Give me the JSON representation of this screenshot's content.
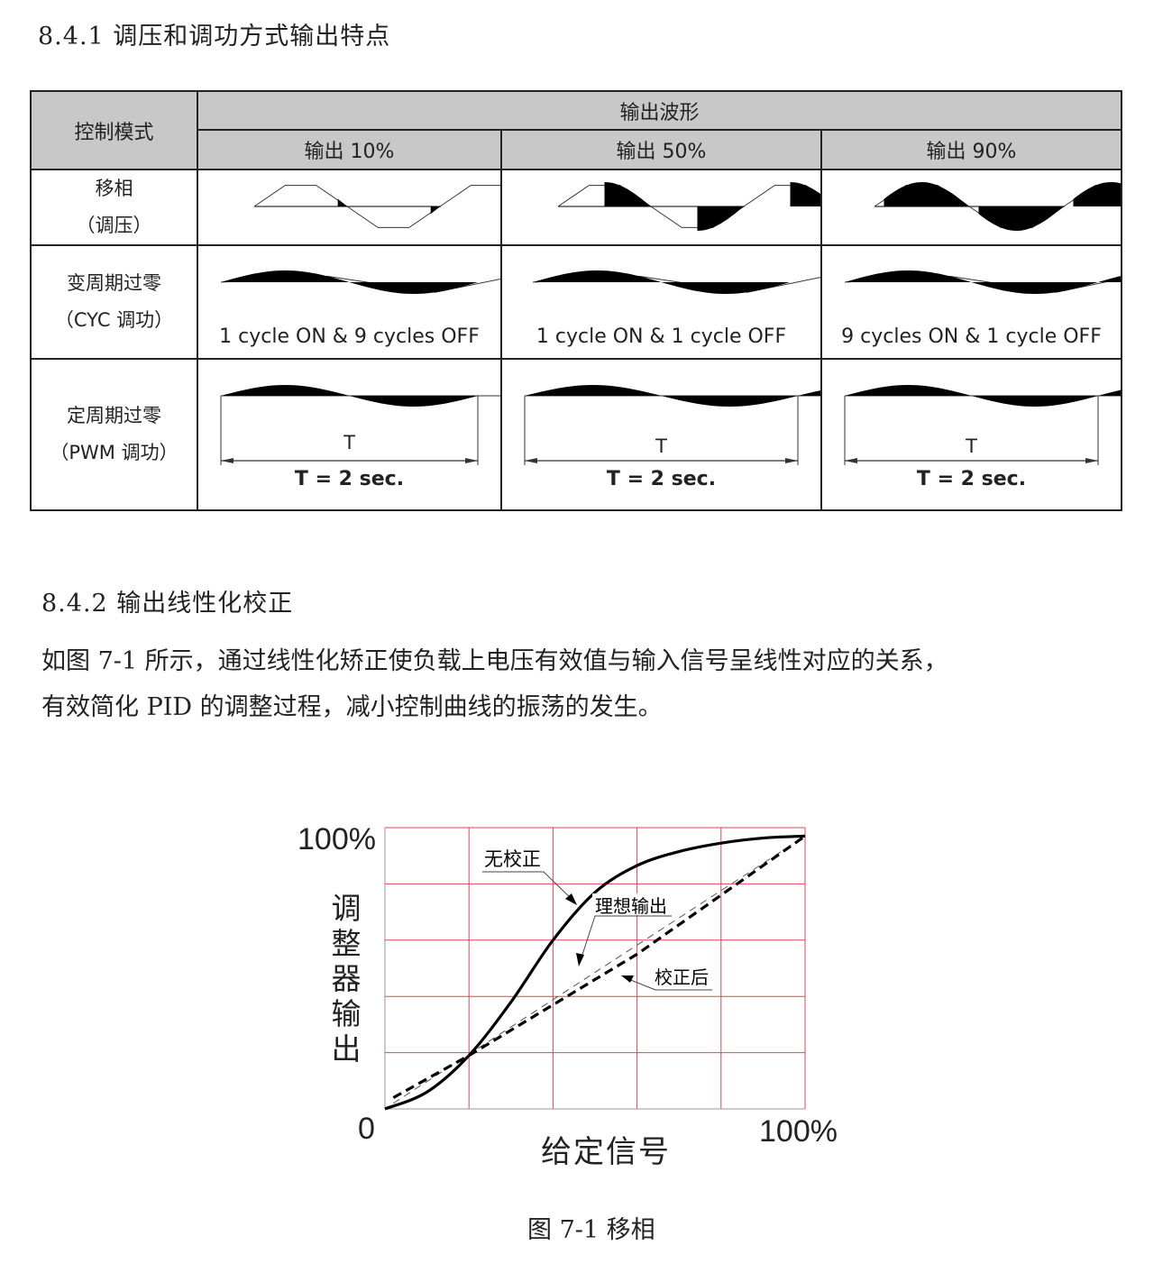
{
  "section1_title": "8.4.1 调压和调功方式输出特点",
  "table": {
    "header_mode": "控制模式",
    "header_waveform": "输出波形",
    "columns": [
      "输出 10%",
      "输出 50%",
      "输出 90%"
    ],
    "rows": [
      {
        "mode_line1": "移相",
        "mode_line2": "（调压）",
        "type": "phase",
        "output_fractions": [
          0.1,
          0.5,
          0.9
        ],
        "captions": []
      },
      {
        "mode_line1": "变周期过零",
        "mode_line2": "（CYC 调功）",
        "type": "cyc",
        "cycles": [
          {
            "on": 1,
            "off": 9
          },
          {
            "on": 1,
            "off": 1
          },
          {
            "on": 9,
            "off": 1
          }
        ],
        "captions": [
          "1 cycle ON & 9 cycles OFF",
          "1 cycle ON & 1 cycle OFF",
          "9 cycles ON & 1 cycle OFF"
        ]
      },
      {
        "mode_line1": "定周期过零",
        "mode_line2": "（PWM 调功）",
        "type": "pwm",
        "cycles": [
          {
            "on": 1,
            "total": 12
          },
          {
            "on": 6,
            "total": 12
          },
          {
            "on": 11,
            "total": 12
          }
        ],
        "period_label": "T",
        "captions": [
          "T = 2 sec.",
          "T = 2 sec.",
          "T = 2 sec."
        ]
      }
    ]
  },
  "section2_title": "8.4.2 输出线性化校正",
  "paragraph_line1": "如图 7-1 所示，通过线性化矫正使负载上电压有效值与输入信号呈线性对应的关系，",
  "paragraph_line2": "有效简化 PID 的调整过程，减小控制曲线的振荡的发生。",
  "chart_data": {
    "type": "line",
    "xlabel": "给定信号",
    "ylabel": "调整器输出",
    "x_tick_labels": [
      "0",
      "100%"
    ],
    "y_tick_labels": [
      "100%"
    ],
    "xlim": [
      0,
      100
    ],
    "ylim": [
      0,
      100
    ],
    "grid": true,
    "grid_color": "#e0455a",
    "series": [
      {
        "name": "无校正",
        "style": "solid",
        "x": [
          0,
          10,
          20,
          30,
          40,
          50,
          60,
          70,
          80,
          90,
          100
        ],
        "y": [
          0,
          6,
          19,
          38,
          60,
          77,
          86.5,
          91.5,
          94.5,
          96.3,
          97
        ]
      },
      {
        "name": "理想输出",
        "style": "thin-dashed",
        "x": [
          2,
          100
        ],
        "y": [
          2,
          97
        ]
      },
      {
        "name": "校正后",
        "style": "dashed",
        "x": [
          2,
          20,
          60,
          100
        ],
        "y": [
          4,
          19,
          55,
          97
        ]
      }
    ],
    "caption": "图 7-1 移相"
  }
}
